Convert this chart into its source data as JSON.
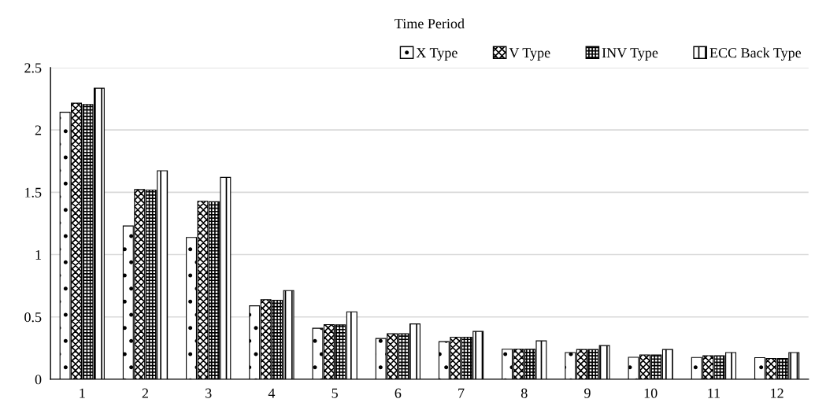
{
  "chart_data": {
    "type": "bar",
    "title": "Time Period",
    "categories": [
      "1",
      "2",
      "3",
      "4",
      "5",
      "6",
      "7",
      "8",
      "9",
      "10",
      "11",
      "12"
    ],
    "series": [
      {
        "name": "X Type",
        "color": "#000000",
        "values": [
          2.142,
          1.23,
          1.138,
          0.589,
          0.409,
          0.327,
          0.302,
          0.241,
          0.214,
          0.176,
          0.175,
          0.173
        ]
      },
      {
        "name": "V Type",
        "color": "#000000",
        "values": [
          2.215,
          1.522,
          1.428,
          0.639,
          0.438,
          0.365,
          0.337,
          0.241,
          0.239,
          0.195,
          0.189,
          0.167
        ]
      },
      {
        "name": "INV Type",
        "color": "#000000",
        "values": [
          2.205,
          1.518,
          1.425,
          0.633,
          0.436,
          0.365,
          0.337,
          0.241,
          0.239,
          0.195,
          0.189,
          0.167
        ]
      },
      {
        "name": "ECC Back Type",
        "color": "#000000",
        "values": [
          2.335,
          1.673,
          1.62,
          0.711,
          0.541,
          0.444,
          0.384,
          0.308,
          0.27,
          0.239,
          0.214,
          0.214
        ]
      }
    ],
    "ylim": [
      0,
      2.5
    ],
    "yticks": [
      0,
      0.5,
      1,
      1.5,
      2,
      2.5
    ],
    "grid": "y",
    "legend": "top right"
  }
}
